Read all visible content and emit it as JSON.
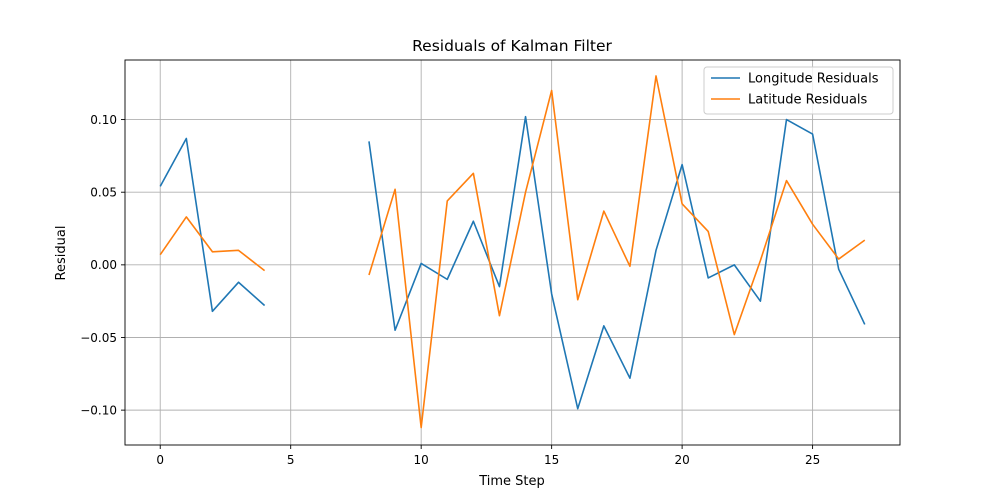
{
  "chart_data": {
    "type": "line",
    "title": "Residuals of Kalman Filter",
    "xlabel": "Time Step",
    "ylabel": "Residual",
    "xlim": [
      -1.35,
      28.35
    ],
    "ylim": [
      -0.124,
      0.141
    ],
    "xticks": [
      0,
      5,
      10,
      15,
      20,
      25
    ],
    "xtick_labels": [
      "0",
      "5",
      "10",
      "15",
      "20",
      "25"
    ],
    "yticks": [
      -0.1,
      -0.05,
      0.0,
      0.05,
      0.1
    ],
    "ytick_labels": [
      "−0.10",
      "−0.05",
      "0.00",
      "0.05",
      "0.10"
    ],
    "grid": true,
    "legend_position": "top-right",
    "x": [
      0,
      1,
      2,
      3,
      4,
      5,
      6,
      7,
      8,
      9,
      10,
      11,
      12,
      13,
      14,
      15,
      16,
      17,
      18,
      19,
      20,
      21,
      22,
      23,
      24,
      25,
      26,
      27
    ],
    "series": [
      {
        "name": "Longitude Residuals",
        "color": "#1f77b4",
        "values": [
          0.054,
          0.087,
          -0.032,
          -0.012,
          -0.028,
          null,
          null,
          null,
          0.085,
          -0.045,
          0.001,
          -0.01,
          0.03,
          -0.015,
          0.102,
          -0.02,
          -0.099,
          -0.042,
          -0.078,
          0.01,
          0.069,
          -0.009,
          0.0,
          -0.025,
          0.1,
          0.09,
          -0.003,
          -0.041
        ]
      },
      {
        "name": "Latitude Residuals",
        "color": "#ff7f0e",
        "values": [
          0.007,
          0.033,
          0.009,
          0.01,
          -0.004,
          null,
          null,
          null,
          -0.007,
          0.052,
          -0.112,
          0.044,
          0.063,
          -0.035,
          0.05,
          0.12,
          -0.024,
          0.037,
          -0.001,
          0.13,
          0.042,
          0.023,
          -0.048,
          0.003,
          0.058,
          0.028,
          0.004,
          0.017
        ]
      }
    ]
  }
}
